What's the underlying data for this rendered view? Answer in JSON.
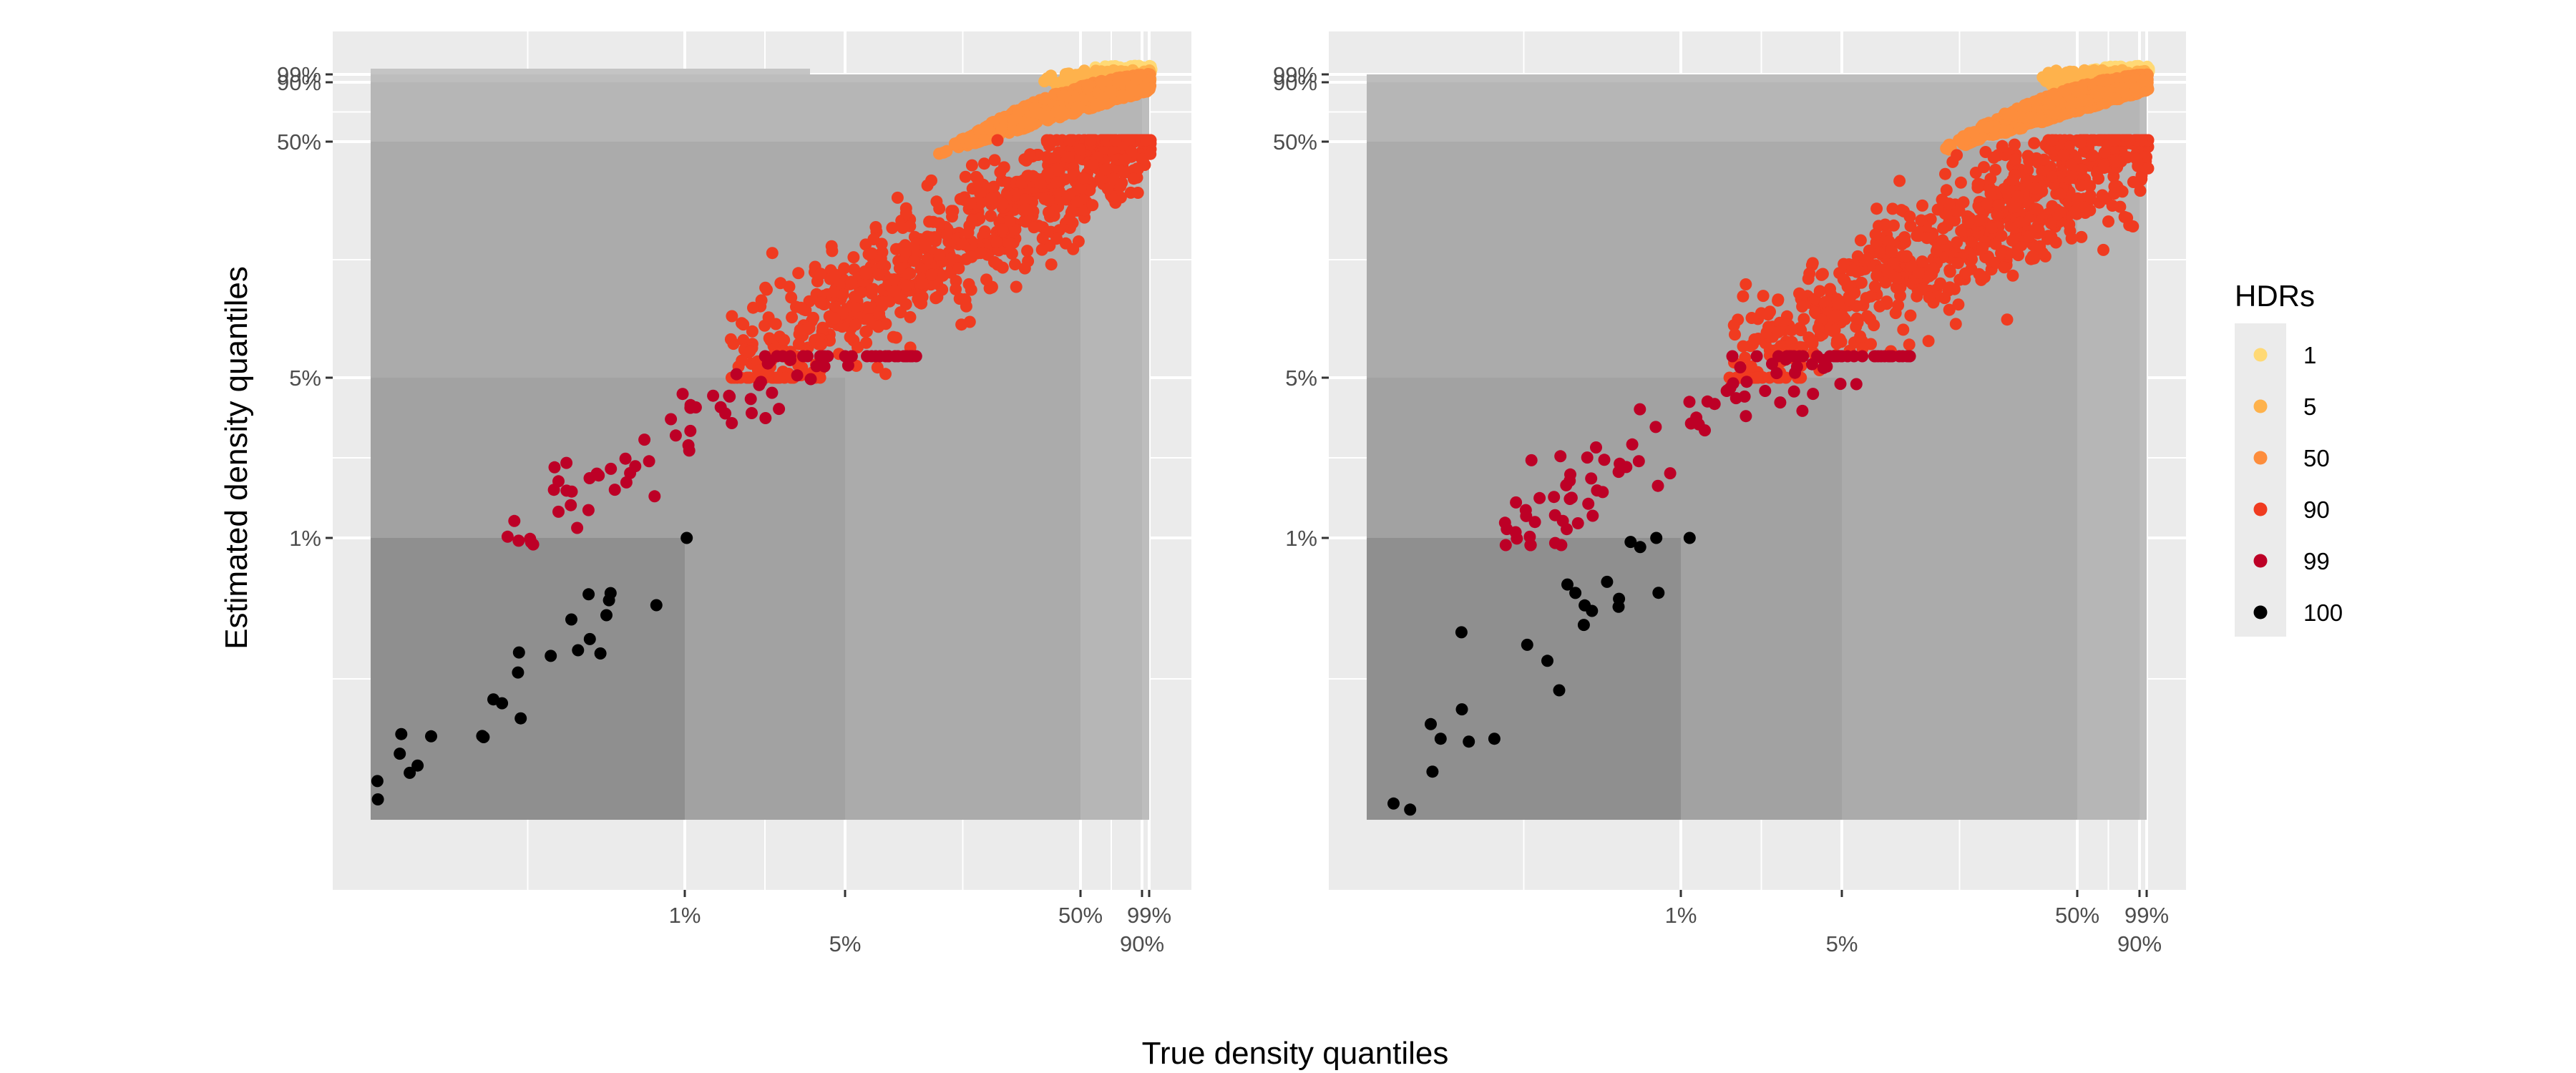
{
  "chart_data": [
    {
      "type": "scatter",
      "panel": "left",
      "x_scale": "density-quantile",
      "y_scale": "density-quantile",
      "x_ticks": [
        "1%",
        "5%",
        "50%",
        "90%",
        "99%"
      ],
      "y_ticks": [
        "1%",
        "5%",
        "50%",
        "90%",
        "99%"
      ],
      "hdr_regions": [
        "100",
        "99",
        "90",
        "50",
        "5",
        "1"
      ],
      "grid": true,
      "series": [
        {
          "group": "1",
          "color": "#FFD975",
          "point_count_approx": 60
        },
        {
          "group": "5",
          "color": "#FEB24C",
          "point_count_approx": 160
        },
        {
          "group": "50",
          "color": "#FD8D3C",
          "point_count_approx": 900
        },
        {
          "group": "90",
          "color": "#F03B20",
          "point_count_approx": 800
        },
        {
          "group": "99",
          "color": "#BD0026",
          "point_count_approx": 90
        },
        {
          "group": "100",
          "color": "#000000",
          "point_count_approx": 25
        }
      ]
    },
    {
      "type": "scatter",
      "panel": "right",
      "x_scale": "density-quantile",
      "y_scale": "density-quantile",
      "x_ticks": [
        "1%",
        "5%",
        "50%",
        "90%",
        "99%"
      ],
      "y_ticks": [
        "1%",
        "5%",
        "50%",
        "90%",
        "99%"
      ],
      "hdr_regions": [
        "100",
        "99",
        "90",
        "50",
        "5",
        "1"
      ],
      "grid": true,
      "series": [
        {
          "group": "1",
          "color": "#FFD975",
          "point_count_approx": 60
        },
        {
          "group": "5",
          "color": "#FEB24C",
          "point_count_approx": 160
        },
        {
          "group": "50",
          "color": "#FD8D3C",
          "point_count_approx": 900
        },
        {
          "group": "90",
          "color": "#F03B20",
          "point_count_approx": 800
        },
        {
          "group": "99",
          "color": "#BD0026",
          "point_count_approx": 110
        },
        {
          "group": "100",
          "color": "#000000",
          "point_count_approx": 25
        }
      ]
    }
  ],
  "axes": {
    "xlabel": "True density quantiles",
    "ylabel": "Estimated density quantiles"
  },
  "legend": {
    "title": "HDRs",
    "placement": "right",
    "items": [
      {
        "label": "1",
        "color": "#FFD975"
      },
      {
        "label": "5",
        "color": "#FEB24C"
      },
      {
        "label": "50",
        "color": "#FD8D3C"
      },
      {
        "label": "90",
        "color": "#F03B20"
      },
      {
        "label": "99",
        "color": "#BD0026"
      },
      {
        "label": "100",
        "color": "#000000"
      }
    ]
  },
  "colors": {
    "panel_background": "#EBEBEB",
    "grid": "#FFFFFF",
    "hdr_shades": [
      "#8F8F8F",
      "#A2A2A2",
      "#ABABAB",
      "#B6B6B6",
      "#BDBDBD",
      "#C4C4C4"
    ]
  }
}
